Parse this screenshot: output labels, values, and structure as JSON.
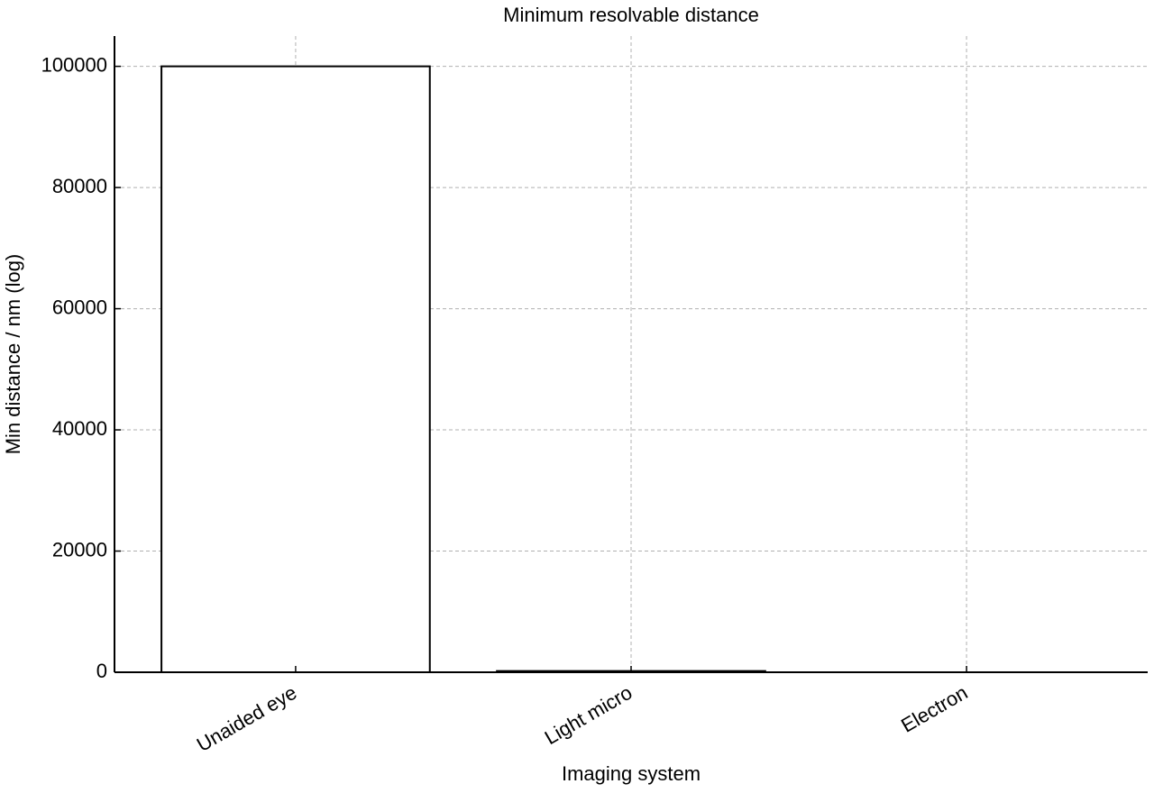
{
  "chart_data": {
    "type": "bar",
    "title": "Minimum resolvable distance",
    "x_label": "Imaging system",
    "y_label": "Min distance / nm (log)",
    "categories": [
      "Unaided eye",
      "Light micro",
      "Electron"
    ],
    "values": [
      100000,
      200,
      0.2
    ],
    "color": "#ffffff",
    "edgecolor": "#000000",
    "ylim": [
      0,
      105000
    ],
    "yticks": [
      0,
      20000,
      40000,
      60000,
      80000,
      100000
    ],
    "grid": true
  }
}
